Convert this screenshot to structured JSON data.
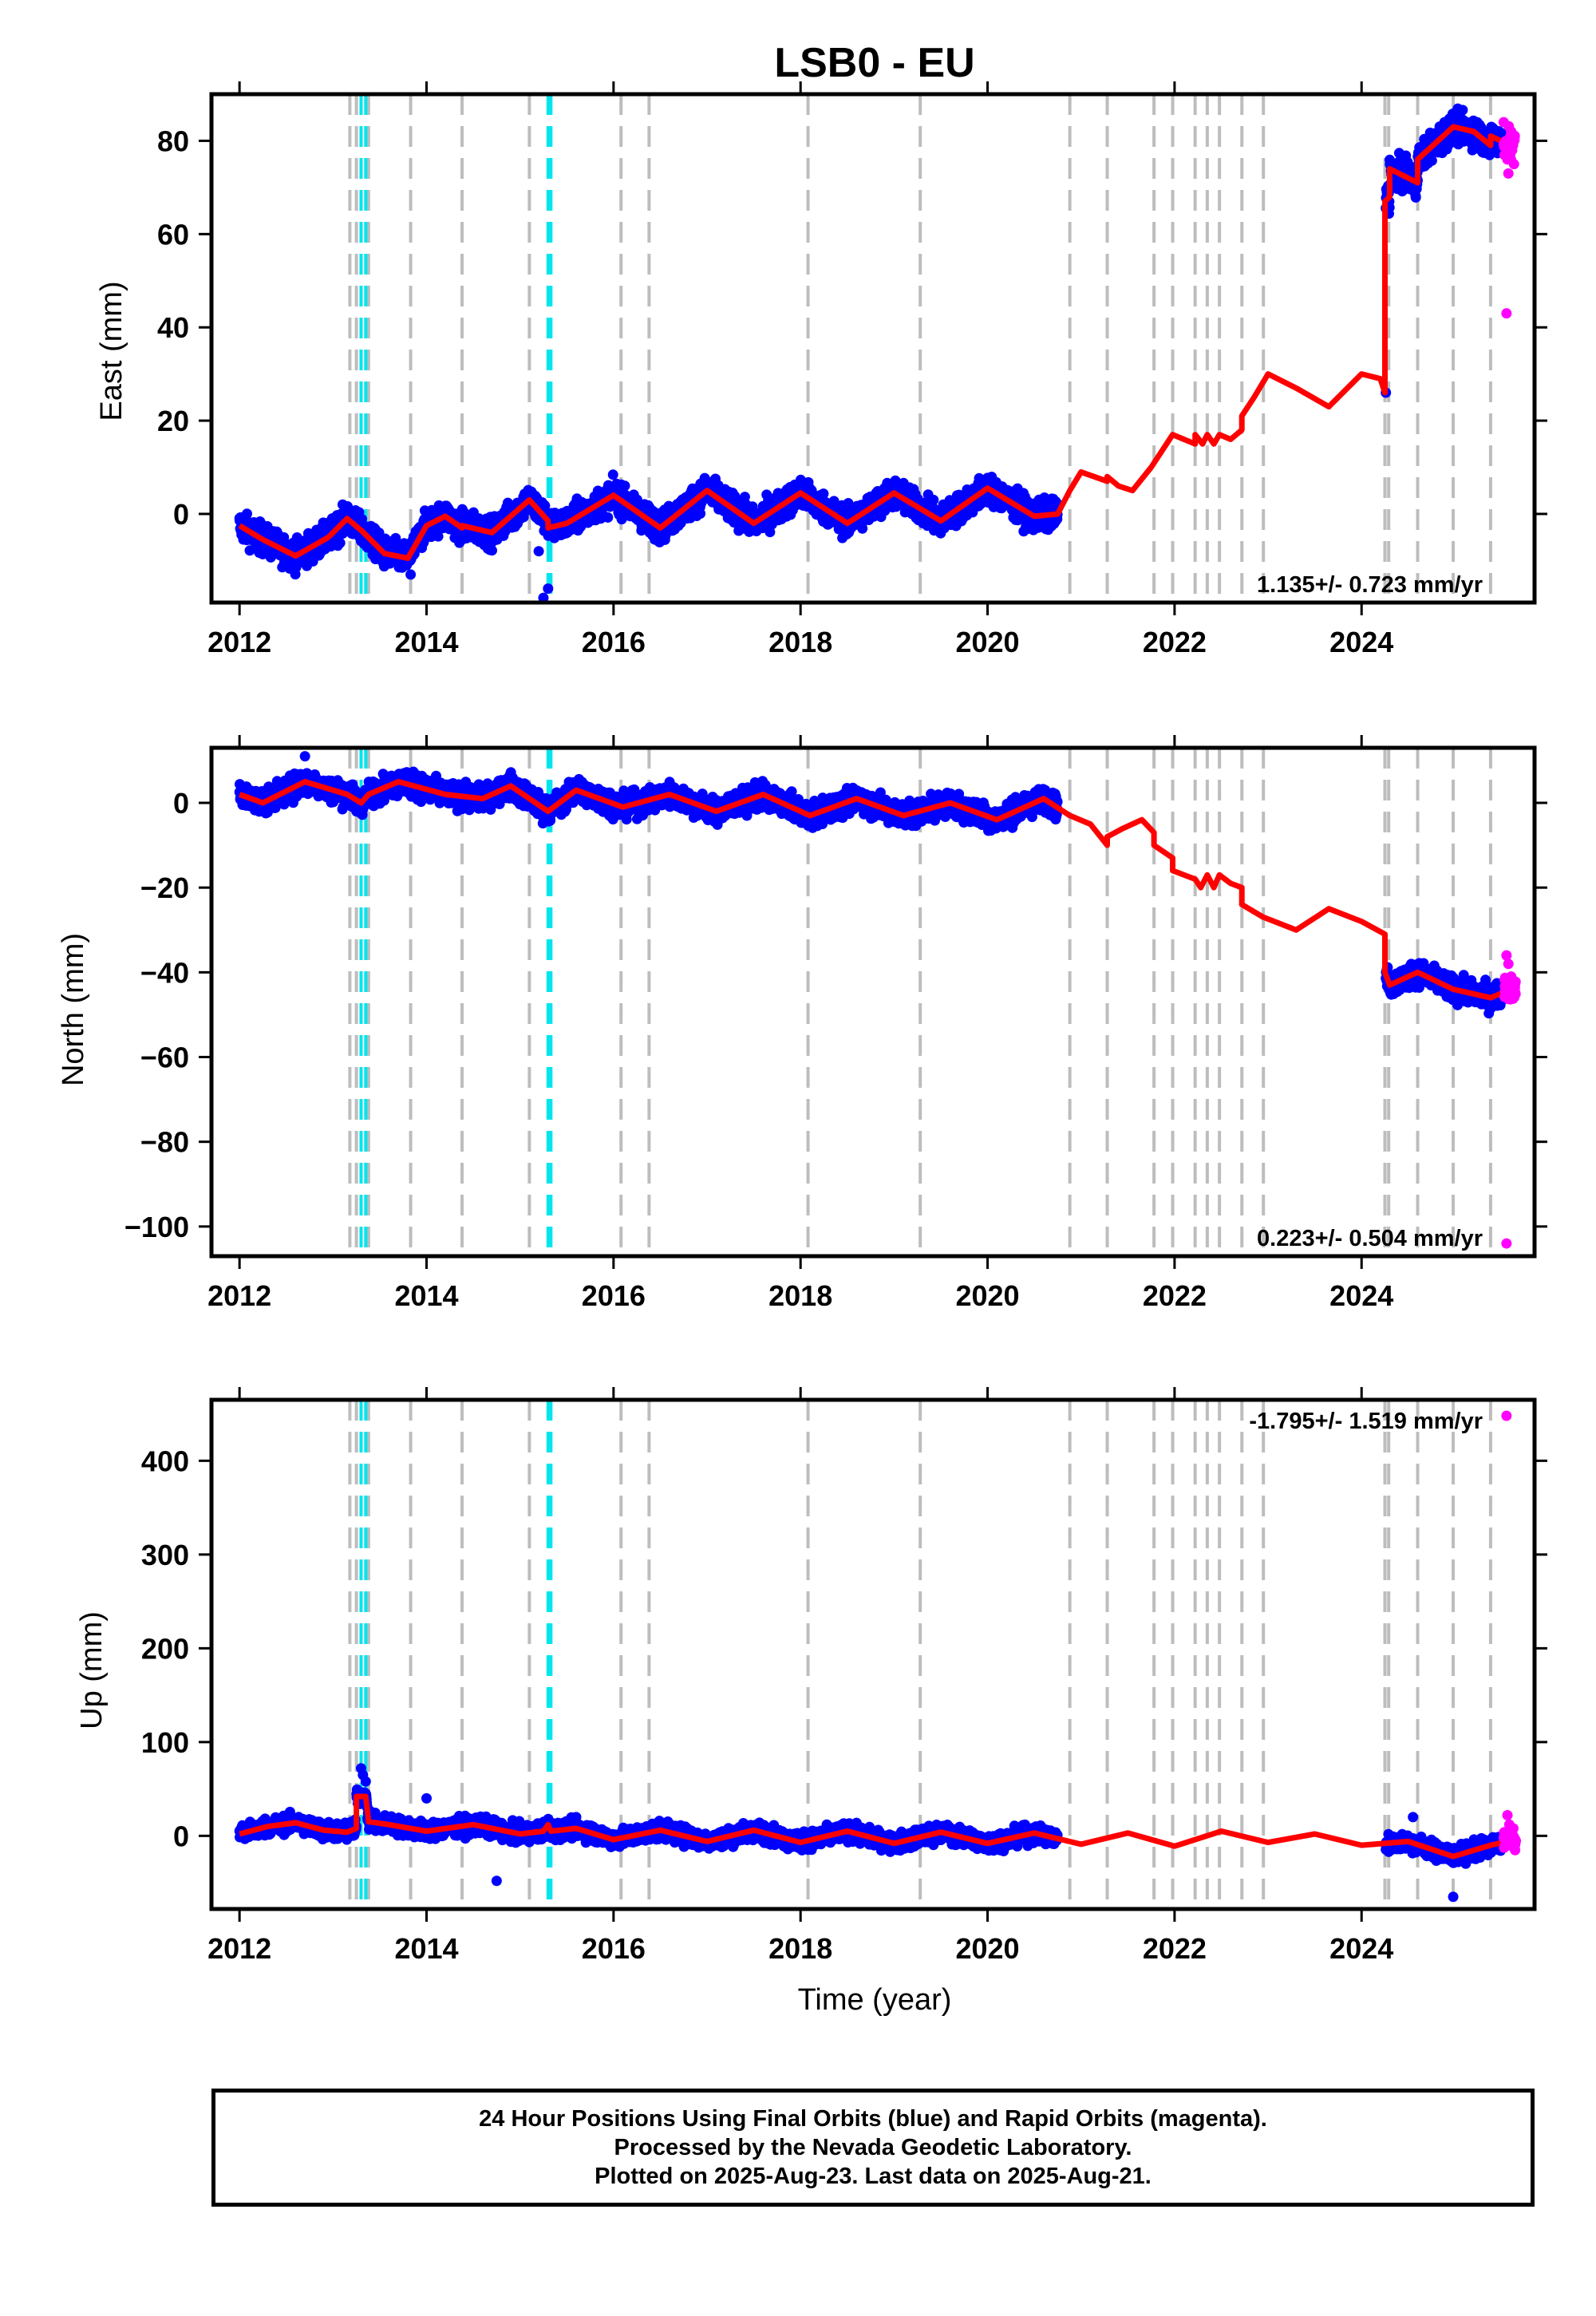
{
  "title": "LSB0 - EU",
  "xlabel": "Time (year)",
  "x_ticks": [
    "2012",
    "2014",
    "2016",
    "2018",
    "2020",
    "2022",
    "2024"
  ],
  "x_tick_values": [
    2012,
    2014,
    2016,
    2018,
    2020,
    2022,
    2024
  ],
  "x_range": [
    2011.7,
    2025.85
  ],
  "colors": {
    "final": "#0000ff",
    "rapid": "#ff00ff",
    "model": "#ff0000",
    "steps": "#bdbdbd",
    "equipment": "#00e5ee"
  },
  "step_lines": [
    2013.18,
    2013.25,
    2013.38,
    2013.83,
    2014.38,
    2015.1,
    2016.08,
    2016.38,
    2018.08,
    2019.28,
    2020.88,
    2021.28,
    2021.78,
    2021.98,
    2022.22,
    2022.35,
    2022.48,
    2022.72,
    2022.95,
    2024.25,
    2024.29,
    2024.6,
    2024.98,
    2025.38
  ],
  "cyan_lines": [
    2013.3,
    2013.35,
    2015.3,
    2015.33
  ],
  "footer": {
    "line1": "24 Hour Positions Using Final Orbits (blue) and Rapid Orbits (magenta).",
    "line2": "Processed by the Nevada Geodetic Laboratory.",
    "line3": "Plotted on 2025-Aug-23. Last data on 2025-Aug-21."
  },
  "chart_data": [
    {
      "type": "scatter",
      "component": "east",
      "ylabel": "East (mm)",
      "y_ticks": [
        "0",
        "20",
        "40",
        "60",
        "80"
      ],
      "y_tick_values": [
        0,
        20,
        40,
        60,
        80
      ],
      "ylim": [
        -19,
        90
      ],
      "rate_label": "1.135+/- 0.723 mm/yr",
      "model": [
        [
          2012.0,
          -2.5
        ],
        [
          2012.25,
          -5.5
        ],
        [
          2012.6,
          -9
        ],
        [
          2012.95,
          -5
        ],
        [
          2013.15,
          -1
        ],
        [
          2013.3,
          -3.5
        ],
        [
          2013.55,
          -8.5
        ],
        [
          2013.8,
          -9.5
        ],
        [
          2014.0,
          -2.5
        ],
        [
          2014.2,
          -0.5
        ],
        [
          2014.38,
          -3
        ],
        [
          2014.38,
          -2.5
        ],
        [
          2014.7,
          -4
        ],
        [
          2015.1,
          3
        ],
        [
          2015.3,
          -1.5
        ],
        [
          2015.3,
          -3
        ],
        [
          2015.5,
          -2
        ],
        [
          2016.0,
          4
        ],
        [
          2016.5,
          -3
        ],
        [
          2017.0,
          5
        ],
        [
          2017.5,
          -2
        ],
        [
          2018.0,
          4.5
        ],
        [
          2018.5,
          -2
        ],
        [
          2019.0,
          4.5
        ],
        [
          2019.5,
          -1.5
        ],
        [
          2020.0,
          5.5
        ],
        [
          2020.5,
          -0.5
        ],
        [
          2020.75,
          0
        ],
        [
          2020.88,
          5
        ],
        [
          2021.0,
          9
        ],
        [
          2021.28,
          7
        ],
        [
          2021.28,
          8
        ],
        [
          2021.4,
          6
        ],
        [
          2021.55,
          5
        ],
        [
          2021.75,
          10
        ],
        [
          2021.98,
          17
        ],
        [
          2022.22,
          15
        ],
        [
          2022.22,
          17
        ],
        [
          2022.3,
          15
        ],
        [
          2022.35,
          17
        ],
        [
          2022.42,
          15
        ],
        [
          2022.48,
          17
        ],
        [
          2022.6,
          16
        ],
        [
          2022.72,
          18
        ],
        [
          2022.72,
          21
        ],
        [
          2022.85,
          25
        ],
        [
          2023.0,
          30
        ],
        [
          2023.3,
          27
        ],
        [
          2023.65,
          23
        ],
        [
          2024.0,
          30
        ],
        [
          2024.2,
          29
        ],
        [
          2024.25,
          26
        ],
        [
          2024.25,
          67
        ],
        [
          2024.3,
          68
        ],
        [
          2024.3,
          74
        ],
        [
          2024.6,
          71
        ],
        [
          2024.6,
          76
        ],
        [
          2024.98,
          83
        ],
        [
          2025.2,
          82
        ],
        [
          2025.38,
          79
        ],
        [
          2025.38,
          81
        ],
        [
          2025.6,
          79
        ]
      ],
      "rapid": [
        [
          2025.52,
          84
        ],
        [
          2025.55,
          80
        ],
        [
          2025.56,
          76
        ],
        [
          2025.57,
          73
        ],
        [
          2025.58,
          78
        ],
        [
          2025.6,
          82
        ],
        [
          2025.61,
          79
        ],
        [
          2025.63,
          75
        ],
        [
          2025.55,
          43
        ]
      ],
      "outliers": [
        [
          2015.25,
          -18
        ],
        [
          2015.3,
          -16
        ],
        [
          2015.2,
          -8
        ],
        [
          2013.83,
          -13
        ],
        [
          2024.26,
          26
        ]
      ]
    },
    {
      "type": "scatter",
      "component": "north",
      "ylabel": "North (mm)",
      "y_ticks": [
        "0",
        "−20",
        "−40",
        "−60",
        "−80",
        "−100"
      ],
      "y_tick_values": [
        0,
        -20,
        -40,
        -60,
        -80,
        -100
      ],
      "ylim": [
        -107,
        13
      ],
      "rate_label": "0.223+/- 0.504 mm/yr",
      "model": [
        [
          2012.0,
          2
        ],
        [
          2012.25,
          0
        ],
        [
          2012.7,
          5
        ],
        [
          2013.15,
          2
        ],
        [
          2013.3,
          0
        ],
        [
          2013.38,
          2
        ],
        [
          2013.7,
          5
        ],
        [
          2014.2,
          2
        ],
        [
          2014.6,
          1
        ],
        [
          2014.9,
          4
        ],
        [
          2015.3,
          -2
        ],
        [
          2015.6,
          3
        ],
        [
          2016.1,
          -1
        ],
        [
          2016.6,
          2
        ],
        [
          2017.1,
          -2
        ],
        [
          2017.6,
          2
        ],
        [
          2018.1,
          -3
        ],
        [
          2018.6,
          1
        ],
        [
          2019.1,
          -3
        ],
        [
          2019.6,
          0
        ],
        [
          2020.1,
          -4
        ],
        [
          2020.6,
          1
        ],
        [
          2020.88,
          -3
        ],
        [
          2021.1,
          -5
        ],
        [
          2021.28,
          -10
        ],
        [
          2021.28,
          -8
        ],
        [
          2021.45,
          -6
        ],
        [
          2021.65,
          -4
        ],
        [
          2021.78,
          -7
        ],
        [
          2021.78,
          -10
        ],
        [
          2021.98,
          -13
        ],
        [
          2021.98,
          -16
        ],
        [
          2022.22,
          -18
        ],
        [
          2022.28,
          -20
        ],
        [
          2022.35,
          -17
        ],
        [
          2022.42,
          -20
        ],
        [
          2022.48,
          -17
        ],
        [
          2022.6,
          -19
        ],
        [
          2022.72,
          -20
        ],
        [
          2022.72,
          -24
        ],
        [
          2022.95,
          -27
        ],
        [
          2023.3,
          -30
        ],
        [
          2023.65,
          -25
        ],
        [
          2024.0,
          -28
        ],
        [
          2024.25,
          -31
        ],
        [
          2024.25,
          -40
        ],
        [
          2024.3,
          -43
        ],
        [
          2024.6,
          -40
        ],
        [
          2024.98,
          -44
        ],
        [
          2025.38,
          -46
        ],
        [
          2025.6,
          -44
        ]
      ],
      "rapid": [
        [
          2025.55,
          -36
        ],
        [
          2025.57,
          -38
        ],
        [
          2025.6,
          -41
        ],
        [
          2025.62,
          -43
        ],
        [
          2025.58,
          -45
        ],
        [
          2025.55,
          -104
        ]
      ],
      "outliers": [
        [
          2012.7,
          11
        ]
      ]
    },
    {
      "type": "scatter",
      "component": "up",
      "ylabel": "Up (mm)",
      "y_ticks": [
        "0",
        "100",
        "200",
        "300",
        "400"
      ],
      "y_tick_values": [
        0,
        100,
        200,
        300,
        400
      ],
      "ylim": [
        -78,
        465
      ],
      "rate_label": "-1.795+/- 1.519 mm/yr",
      "model": [
        [
          2012.0,
          2
        ],
        [
          2012.3,
          10
        ],
        [
          2012.6,
          14
        ],
        [
          2012.9,
          6
        ],
        [
          2013.15,
          4
        ],
        [
          2013.25,
          8
        ],
        [
          2013.25,
          42
        ],
        [
          2013.35,
          42
        ],
        [
          2013.38,
          15
        ],
        [
          2013.6,
          12
        ],
        [
          2014.0,
          5
        ],
        [
          2014.5,
          12
        ],
        [
          2015.0,
          2
        ],
        [
          2015.25,
          5
        ],
        [
          2015.3,
          12
        ],
        [
          2015.33,
          5
        ],
        [
          2015.6,
          8
        ],
        [
          2016.0,
          -4
        ],
        [
          2016.5,
          6
        ],
        [
          2017.0,
          -6
        ],
        [
          2017.5,
          6
        ],
        [
          2018.0,
          -7
        ],
        [
          2018.5,
          5
        ],
        [
          2019.0,
          -8
        ],
        [
          2019.5,
          4
        ],
        [
          2020.0,
          -8
        ],
        [
          2020.5,
          3
        ],
        [
          2021.0,
          -9
        ],
        [
          2021.5,
          3
        ],
        [
          2022.0,
          -11
        ],
        [
          2022.5,
          5
        ],
        [
          2023.0,
          -7
        ],
        [
          2023.5,
          2
        ],
        [
          2024.0,
          -10
        ],
        [
          2024.5,
          -6
        ],
        [
          2024.98,
          -22
        ],
        [
          2025.38,
          -10
        ],
        [
          2025.6,
          -5
        ]
      ],
      "rapid": [
        [
          2025.55,
          448
        ],
        [
          2025.56,
          22
        ],
        [
          2025.58,
          12
        ],
        [
          2025.6,
          5
        ],
        [
          2025.62,
          0
        ],
        [
          2025.57,
          -10
        ]
      ],
      "outliers": [
        [
          2013.3,
          72
        ],
        [
          2013.32,
          65
        ],
        [
          2013.35,
          58
        ],
        [
          2014.75,
          -48
        ],
        [
          2014.0,
          40
        ],
        [
          2024.98,
          -65
        ],
        [
          2024.55,
          20
        ]
      ]
    }
  ]
}
